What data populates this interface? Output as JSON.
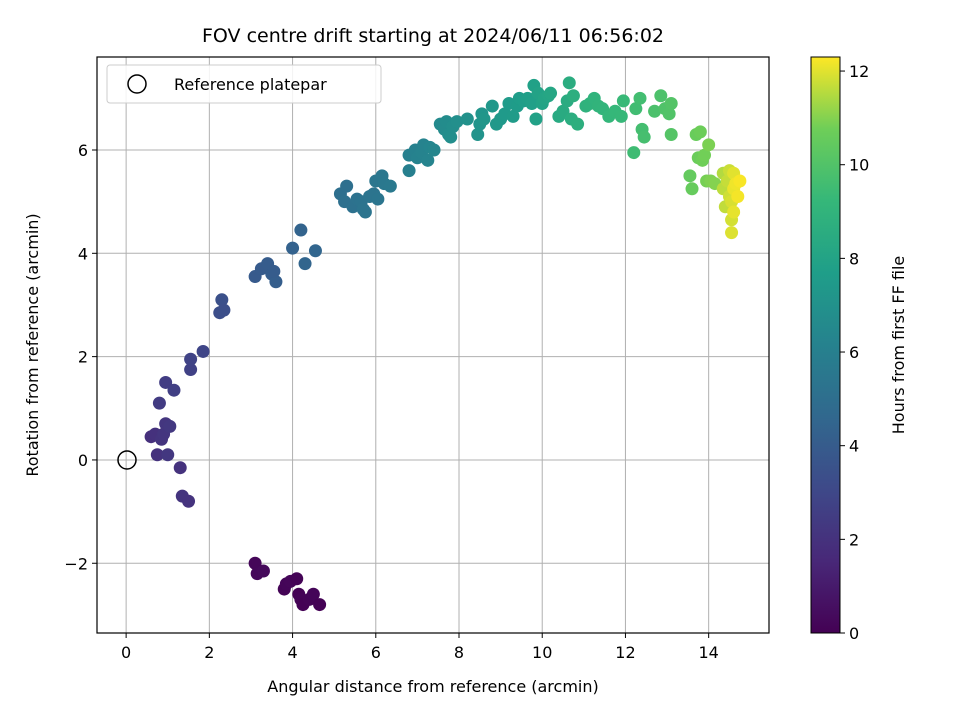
{
  "chart_data": {
    "type": "scatter",
    "title": "FOV centre drift starting at 2024/06/11 06:56:02",
    "xlabel": "Angular distance from reference (arcmin)",
    "ylabel": "Rotation from reference (arcmin)",
    "xlim": [
      -0.7,
      15.45
    ],
    "ylim": [
      -3.35,
      7.8
    ],
    "xticks": [
      0,
      2,
      4,
      6,
      8,
      10,
      12,
      14
    ],
    "yticks": [
      -2,
      0,
      2,
      4,
      6
    ],
    "grid": true,
    "legend": {
      "position": "top-left",
      "entries": [
        "Reference platepar"
      ]
    },
    "reference_point": {
      "x": 0,
      "y": 0
    },
    "colorbar": {
      "label": "Hours from first FF file",
      "range": [
        0,
        12.3
      ],
      "ticks": [
        0,
        2,
        4,
        6,
        8,
        10,
        12
      ],
      "colormap": "viridis"
    },
    "points": [
      {
        "x": 3.1,
        "y": -2.0,
        "h": 0.2
      },
      {
        "x": 3.15,
        "y": -2.2,
        "h": 0.25
      },
      {
        "x": 3.3,
        "y": -2.15,
        "h": 0.3
      },
      {
        "x": 3.8,
        "y": -2.5,
        "h": 0.1
      },
      {
        "x": 3.85,
        "y": -2.4,
        "h": 0.15
      },
      {
        "x": 3.95,
        "y": -2.35,
        "h": 0.2
      },
      {
        "x": 4.1,
        "y": -2.3,
        "h": 0.1
      },
      {
        "x": 4.15,
        "y": -2.6,
        "h": 0.05
      },
      {
        "x": 4.2,
        "y": -2.7,
        "h": 0.1
      },
      {
        "x": 4.25,
        "y": -2.8,
        "h": 0.05
      },
      {
        "x": 4.4,
        "y": -2.7,
        "h": 0.1
      },
      {
        "x": 4.5,
        "y": -2.6,
        "h": 0.15
      },
      {
        "x": 4.65,
        "y": -2.8,
        "h": 0.05
      },
      {
        "x": 1.3,
        "y": -0.15,
        "h": 2.0
      },
      {
        "x": 1.35,
        "y": -0.7,
        "h": 2.1
      },
      {
        "x": 1.5,
        "y": -0.8,
        "h": 2.05
      },
      {
        "x": 0.6,
        "y": 0.45,
        "h": 1.9
      },
      {
        "x": 0.7,
        "y": 0.5,
        "h": 1.95
      },
      {
        "x": 0.75,
        "y": 0.1,
        "h": 2.0
      },
      {
        "x": 0.85,
        "y": 0.4,
        "h": 2.1
      },
      {
        "x": 0.9,
        "y": 0.5,
        "h": 2.15
      },
      {
        "x": 0.95,
        "y": 0.7,
        "h": 2.2
      },
      {
        "x": 1.05,
        "y": 0.65,
        "h": 2.3
      },
      {
        "x": 1.0,
        "y": 0.1,
        "h": 2.25
      },
      {
        "x": 0.8,
        "y": 1.1,
        "h": 2.4
      },
      {
        "x": 0.95,
        "y": 1.5,
        "h": 2.5
      },
      {
        "x": 1.15,
        "y": 1.35,
        "h": 2.6
      },
      {
        "x": 1.55,
        "y": 1.75,
        "h": 2.7
      },
      {
        "x": 1.55,
        "y": 1.95,
        "h": 2.8
      },
      {
        "x": 1.85,
        "y": 2.1,
        "h": 2.9
      },
      {
        "x": 2.25,
        "y": 2.85,
        "h": 3.3
      },
      {
        "x": 2.3,
        "y": 3.1,
        "h": 3.4
      },
      {
        "x": 2.35,
        "y": 2.9,
        "h": 3.35
      },
      {
        "x": 3.1,
        "y": 3.55,
        "h": 3.9
      },
      {
        "x": 3.25,
        "y": 3.7,
        "h": 3.95
      },
      {
        "x": 3.4,
        "y": 3.8,
        "h": 4.0
      },
      {
        "x": 3.5,
        "y": 3.6,
        "h": 4.05
      },
      {
        "x": 3.6,
        "y": 3.45,
        "h": 4.1
      },
      {
        "x": 3.55,
        "y": 3.65,
        "h": 4.0
      },
      {
        "x": 4.0,
        "y": 4.1,
        "h": 4.3
      },
      {
        "x": 4.2,
        "y": 4.45,
        "h": 4.4
      },
      {
        "x": 4.3,
        "y": 3.8,
        "h": 4.45
      },
      {
        "x": 4.55,
        "y": 4.05,
        "h": 4.5
      },
      {
        "x": 5.15,
        "y": 5.15,
        "h": 5.0
      },
      {
        "x": 5.3,
        "y": 5.3,
        "h": 5.05
      },
      {
        "x": 5.25,
        "y": 5.0,
        "h": 5.1
      },
      {
        "x": 5.45,
        "y": 4.9,
        "h": 5.15
      },
      {
        "x": 5.55,
        "y": 5.05,
        "h": 5.2
      },
      {
        "x": 5.65,
        "y": 5.0,
        "h": 5.25
      },
      {
        "x": 5.7,
        "y": 4.85,
        "h": 5.3
      },
      {
        "x": 5.75,
        "y": 4.8,
        "h": 5.35
      },
      {
        "x": 5.85,
        "y": 5.1,
        "h": 5.3
      },
      {
        "x": 5.95,
        "y": 5.15,
        "h": 5.35
      },
      {
        "x": 6.05,
        "y": 5.05,
        "h": 5.4
      },
      {
        "x": 6.0,
        "y": 5.4,
        "h": 5.45
      },
      {
        "x": 6.15,
        "y": 5.5,
        "h": 5.5
      },
      {
        "x": 6.2,
        "y": 5.35,
        "h": 5.55
      },
      {
        "x": 6.35,
        "y": 5.3,
        "h": 5.6
      },
      {
        "x": 6.8,
        "y": 5.6,
        "h": 6.0
      },
      {
        "x": 6.8,
        "y": 5.9,
        "h": 6.05
      },
      {
        "x": 6.95,
        "y": 6.0,
        "h": 6.1
      },
      {
        "x": 7.0,
        "y": 5.85,
        "h": 6.15
      },
      {
        "x": 7.1,
        "y": 5.95,
        "h": 6.2
      },
      {
        "x": 7.15,
        "y": 6.1,
        "h": 6.2
      },
      {
        "x": 7.25,
        "y": 5.8,
        "h": 6.25
      },
      {
        "x": 7.3,
        "y": 6.05,
        "h": 6.3
      },
      {
        "x": 7.4,
        "y": 6.0,
        "h": 6.35
      },
      {
        "x": 7.55,
        "y": 6.5,
        "h": 6.6
      },
      {
        "x": 7.65,
        "y": 6.4,
        "h": 6.65
      },
      {
        "x": 7.7,
        "y": 6.55,
        "h": 6.7
      },
      {
        "x": 7.75,
        "y": 6.3,
        "h": 6.75
      },
      {
        "x": 7.8,
        "y": 6.25,
        "h": 6.8
      },
      {
        "x": 7.85,
        "y": 6.45,
        "h": 6.8
      },
      {
        "x": 7.95,
        "y": 6.55,
        "h": 6.85
      },
      {
        "x": 8.2,
        "y": 6.6,
        "h": 7.0
      },
      {
        "x": 8.45,
        "y": 6.3,
        "h": 7.1
      },
      {
        "x": 8.5,
        "y": 6.5,
        "h": 7.15
      },
      {
        "x": 8.55,
        "y": 6.7,
        "h": 7.2
      },
      {
        "x": 8.6,
        "y": 6.6,
        "h": 7.25
      },
      {
        "x": 8.8,
        "y": 6.85,
        "h": 7.3
      },
      {
        "x": 8.9,
        "y": 6.5,
        "h": 7.35
      },
      {
        "x": 9.0,
        "y": 6.6,
        "h": 7.4
      },
      {
        "x": 9.1,
        "y": 6.7,
        "h": 7.45
      },
      {
        "x": 9.2,
        "y": 6.9,
        "h": 7.5
      },
      {
        "x": 9.3,
        "y": 6.65,
        "h": 7.55
      },
      {
        "x": 9.4,
        "y": 6.85,
        "h": 7.6
      },
      {
        "x": 9.45,
        "y": 7.0,
        "h": 7.65
      },
      {
        "x": 9.55,
        "y": 6.95,
        "h": 7.7
      },
      {
        "x": 9.65,
        "y": 7.0,
        "h": 7.75
      },
      {
        "x": 9.75,
        "y": 6.9,
        "h": 7.8
      },
      {
        "x": 9.8,
        "y": 7.25,
        "h": 7.85
      },
      {
        "x": 9.85,
        "y": 6.6,
        "h": 7.9
      },
      {
        "x": 9.9,
        "y": 7.1,
        "h": 7.95
      },
      {
        "x": 10.0,
        "y": 6.9,
        "h": 8.0
      },
      {
        "x": 10.05,
        "y": 7.0,
        "h": 8.05
      },
      {
        "x": 10.15,
        "y": 7.05,
        "h": 8.1
      },
      {
        "x": 10.2,
        "y": 7.1,
        "h": 8.15
      },
      {
        "x": 10.4,
        "y": 6.65,
        "h": 8.4
      },
      {
        "x": 10.5,
        "y": 6.75,
        "h": 8.45
      },
      {
        "x": 10.6,
        "y": 6.95,
        "h": 8.5
      },
      {
        "x": 10.65,
        "y": 7.3,
        "h": 8.55
      },
      {
        "x": 10.7,
        "y": 6.6,
        "h": 8.6
      },
      {
        "x": 10.75,
        "y": 7.05,
        "h": 8.65
      },
      {
        "x": 10.85,
        "y": 6.5,
        "h": 8.7
      },
      {
        "x": 11.05,
        "y": 6.85,
        "h": 8.85
      },
      {
        "x": 11.15,
        "y": 6.9,
        "h": 8.9
      },
      {
        "x": 11.25,
        "y": 7.0,
        "h": 8.95
      },
      {
        "x": 11.35,
        "y": 6.85,
        "h": 9.0
      },
      {
        "x": 11.45,
        "y": 6.8,
        "h": 9.05
      },
      {
        "x": 11.6,
        "y": 6.65,
        "h": 9.15
      },
      {
        "x": 11.75,
        "y": 6.75,
        "h": 9.2
      },
      {
        "x": 11.9,
        "y": 6.65,
        "h": 9.25
      },
      {
        "x": 11.95,
        "y": 6.95,
        "h": 9.3
      },
      {
        "x": 12.2,
        "y": 5.95,
        "h": 9.5
      },
      {
        "x": 12.25,
        "y": 6.8,
        "h": 9.55
      },
      {
        "x": 12.35,
        "y": 7.0,
        "h": 9.6
      },
      {
        "x": 12.4,
        "y": 6.4,
        "h": 9.65
      },
      {
        "x": 12.45,
        "y": 6.25,
        "h": 9.7
      },
      {
        "x": 12.7,
        "y": 6.75,
        "h": 9.85
      },
      {
        "x": 12.85,
        "y": 7.05,
        "h": 9.9
      },
      {
        "x": 12.95,
        "y": 6.8,
        "h": 9.95
      },
      {
        "x": 13.05,
        "y": 6.7,
        "h": 10.0
      },
      {
        "x": 13.1,
        "y": 6.9,
        "h": 10.05
      },
      {
        "x": 13.1,
        "y": 6.3,
        "h": 10.1
      },
      {
        "x": 13.55,
        "y": 5.5,
        "h": 10.5
      },
      {
        "x": 13.6,
        "y": 5.25,
        "h": 10.55
      },
      {
        "x": 13.7,
        "y": 6.3,
        "h": 10.6
      },
      {
        "x": 13.75,
        "y": 5.85,
        "h": 10.65
      },
      {
        "x": 13.8,
        "y": 6.35,
        "h": 10.7
      },
      {
        "x": 13.85,
        "y": 5.8,
        "h": 10.75
      },
      {
        "x": 13.9,
        "y": 5.9,
        "h": 10.8
      },
      {
        "x": 13.95,
        "y": 5.4,
        "h": 10.85
      },
      {
        "x": 14.0,
        "y": 6.1,
        "h": 10.9
      },
      {
        "x": 14.05,
        "y": 5.4,
        "h": 10.95
      },
      {
        "x": 14.15,
        "y": 5.35,
        "h": 11.0
      },
      {
        "x": 14.35,
        "y": 5.55,
        "h": 11.5
      },
      {
        "x": 14.35,
        "y": 5.25,
        "h": 11.6
      },
      {
        "x": 14.4,
        "y": 4.9,
        "h": 11.65
      },
      {
        "x": 14.45,
        "y": 5.4,
        "h": 11.7
      },
      {
        "x": 14.5,
        "y": 5.6,
        "h": 11.75
      },
      {
        "x": 14.5,
        "y": 5.1,
        "h": 11.8
      },
      {
        "x": 14.55,
        "y": 4.65,
        "h": 11.85
      },
      {
        "x": 14.55,
        "y": 5.0,
        "h": 11.9
      },
      {
        "x": 14.55,
        "y": 4.4,
        "h": 11.95
      },
      {
        "x": 14.6,
        "y": 5.55,
        "h": 12.0
      },
      {
        "x": 14.6,
        "y": 4.8,
        "h": 12.05
      },
      {
        "x": 14.6,
        "y": 5.25,
        "h": 12.1
      },
      {
        "x": 14.65,
        "y": 5.35,
        "h": 12.15
      },
      {
        "x": 14.7,
        "y": 5.1,
        "h": 12.2
      },
      {
        "x": 14.75,
        "y": 5.4,
        "h": 12.25
      }
    ]
  }
}
